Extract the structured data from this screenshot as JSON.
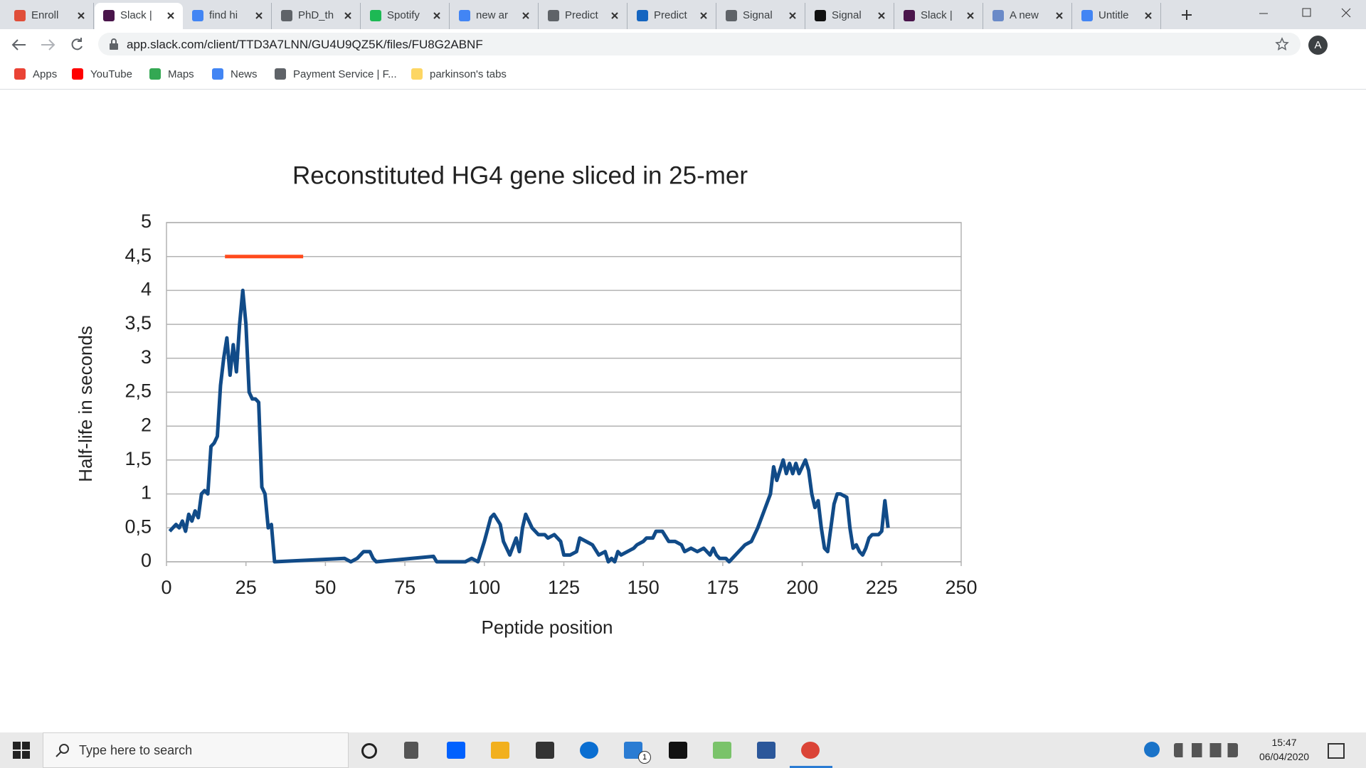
{
  "browser": {
    "tabs": [
      "Enroll",
      "Slack |",
      "find hi",
      "PhD_th",
      "Spotify",
      "new ar",
      "Predict",
      "Predict",
      "Signal",
      "Signal",
      "Slack |",
      "A new",
      "Untitle"
    ],
    "url": "app.slack.com/client/TTD3A7LNN/GU4U9QZ5K/files/FU8G2ABNF",
    "profile": "A",
    "bookmarks": [
      "Apps",
      "YouTube",
      "Maps",
      "News",
      "Payment Service | F...",
      "parkinson's tabs"
    ]
  },
  "chart_data": {
    "type": "line",
    "title": "Reconstituted HG4 gene sliced in 25-mer",
    "x_label": "Peptide position",
    "y_label": "Half-life in seconds",
    "xlim": [
      0,
      250
    ],
    "xticks": [
      0,
      25,
      50,
      75,
      100,
      125,
      150,
      175,
      200,
      225,
      250
    ],
    "ylim": [
      0,
      5
    ],
    "yticks": [
      0,
      {
        "value": 0.5,
        "label": "0,5"
      },
      1,
      {
        "value": 1.5,
        "label": "1,5"
      },
      2,
      {
        "value": 2.5,
        "label": "2,5"
      },
      3,
      {
        "value": 3.5,
        "label": "3,5"
      },
      4,
      {
        "value": 4.5,
        "label": "4,5"
      },
      5
    ],
    "grid": true,
    "series": [
      {
        "color": "#114b88",
        "x": [
          1,
          2,
          3,
          4,
          5,
          6,
          7,
          8,
          9,
          10,
          11,
          12,
          13,
          14,
          15,
          16,
          17,
          18,
          19,
          20,
          21,
          22,
          23,
          24,
          25,
          26,
          27,
          28,
          29,
          30,
          31,
          32,
          33,
          34,
          56,
          58,
          60,
          62,
          64,
          65,
          66,
          84,
          85,
          94,
          96,
          98,
          100,
          102,
          103,
          105,
          106,
          108,
          110,
          111,
          112,
          113,
          115,
          117,
          119,
          120,
          122,
          124,
          125,
          127,
          129,
          130,
          132,
          134,
          136,
          138,
          139,
          140,
          141,
          142,
          143,
          145,
          147,
          148,
          150,
          151,
          153,
          154,
          156,
          158,
          160,
          162,
          163,
          165,
          167,
          169,
          171,
          172,
          173,
          174,
          176,
          177,
          178,
          180,
          182,
          184,
          186,
          188,
          190,
          191,
          192,
          193,
          194,
          195,
          196,
          197,
          198,
          199,
          201,
          202,
          203,
          204,
          205,
          206,
          207,
          208,
          209,
          210,
          211,
          212,
          214,
          215,
          216,
          217,
          218,
          219,
          220,
          221,
          222,
          224,
          225,
          226,
          227
        ],
        "values": [
          0.45,
          0.5,
          0.55,
          0.5,
          0.6,
          0.45,
          0.7,
          0.6,
          0.75,
          0.65,
          1.0,
          1.05,
          1.0,
          1.7,
          1.75,
          1.85,
          2.6,
          3.0,
          3.3,
          2.75,
          3.2,
          2.8,
          3.5,
          4.0,
          3.5,
          2.5,
          2.4,
          2.4,
          2.35,
          1.1,
          1.0,
          0.5,
          0.55,
          0,
          0.05,
          0,
          0.05,
          0.15,
          0.15,
          0.05,
          0,
          0.08,
          0,
          0,
          0.05,
          0,
          0.3,
          0.65,
          0.7,
          0.55,
          0.3,
          0.1,
          0.35,
          0.15,
          0.5,
          0.7,
          0.5,
          0.4,
          0.4,
          0.35,
          0.4,
          0.3,
          0.1,
          0.1,
          0.15,
          0.35,
          0.3,
          0.25,
          0.1,
          0.15,
          0,
          0.05,
          0,
          0.15,
          0.1,
          0.15,
          0.2,
          0.25,
          0.3,
          0.35,
          0.35,
          0.45,
          0.45,
          0.3,
          0.3,
          0.25,
          0.15,
          0.2,
          0.15,
          0.2,
          0.1,
          0.2,
          0.1,
          0.05,
          0.05,
          0,
          0.05,
          0.15,
          0.25,
          0.3,
          0.5,
          0.75,
          1.0,
          1.4,
          1.2,
          1.35,
          1.5,
          1.3,
          1.45,
          1.3,
          1.45,
          1.3,
          1.5,
          1.35,
          1.0,
          0.8,
          0.9,
          0.5,
          0.2,
          0.15,
          0.5,
          0.85,
          1.0,
          1.0,
          0.95,
          0.5,
          0.2,
          0.25,
          0.15,
          0.1,
          0.2,
          0.35,
          0.4,
          0.4,
          0.45,
          0.9,
          0.5
        ]
      },
      {
        "color": "#ff4a1c",
        "x": [
          18.4,
          43
        ],
        "values": [
          4.5,
          4.5
        ]
      }
    ]
  },
  "taskbar": {
    "search": "Type here to search",
    "mail_badge": "1",
    "time": "15:47",
    "date": "06/04/2020"
  }
}
